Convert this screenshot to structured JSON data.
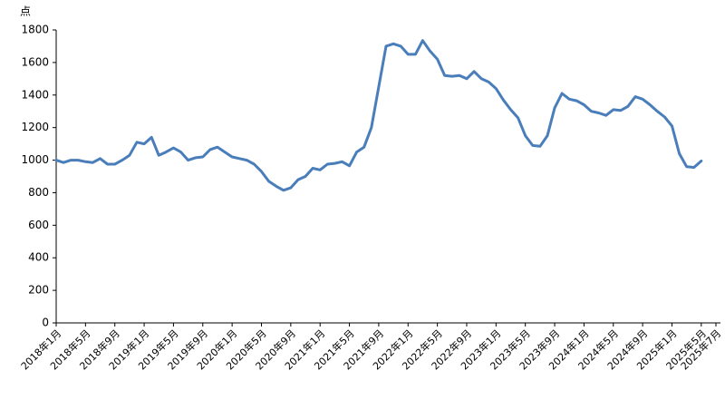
{
  "chart_data": {
    "type": "line",
    "y_label": "点",
    "categories": [
      "2018年1月",
      null,
      null,
      null,
      "2018年5月",
      null,
      null,
      null,
      "2018年9月",
      null,
      null,
      null,
      "2019年1月",
      null,
      null,
      null,
      "2019年5月",
      null,
      null,
      null,
      "2019年9月",
      null,
      null,
      null,
      "2020年1月",
      null,
      null,
      null,
      "2020年5月",
      null,
      null,
      null,
      "2020年9月",
      null,
      null,
      null,
      "2021年1月",
      null,
      null,
      null,
      "2021年5月",
      null,
      null,
      null,
      "2021年9月",
      null,
      null,
      null,
      "2022年1月",
      null,
      null,
      null,
      "2022年5月",
      null,
      null,
      null,
      "2022年9月",
      null,
      null,
      null,
      "2023年1月",
      null,
      null,
      null,
      "2023年5月",
      null,
      null,
      null,
      "2023年9月",
      null,
      null,
      null,
      "2024年1月",
      null,
      null,
      null,
      "2024年5月",
      null,
      null,
      null,
      "2024年9月",
      null,
      null,
      null,
      "2025年1月",
      null,
      null,
      null,
      "2025年5月",
      null,
      "2025年7月"
    ],
    "series": [
      {
        "color": "#4a7ebb",
        "values": [
          1000,
          985,
          1000,
          1000,
          990,
          985,
          1010,
          975,
          975,
          1000,
          1030,
          1110,
          1100,
          1140,
          1030,
          1050,
          1075,
          1050,
          1000,
          1015,
          1020,
          1065,
          1080,
          1050,
          1020,
          1010,
          1000,
          975,
          930,
          870,
          840,
          815,
          830,
          880,
          900,
          950,
          940,
          975,
          980,
          990,
          965,
          1050,
          1080,
          1200,
          1450,
          1700,
          1715,
          1700,
          1650,
          1650,
          1735,
          1670,
          1620,
          1520,
          1515,
          1520,
          1500,
          1545,
          1500,
          1480,
          1440,
          1370,
          1310,
          1260,
          1150,
          1090,
          1085,
          1150,
          1320,
          1410,
          1375,
          1365,
          1340,
          1300,
          1290,
          1275,
          1310,
          1305,
          1330,
          1390,
          1375,
          1340,
          1300,
          1265,
          1210,
          1040,
          960,
          955,
          995,
          null,
          null
        ]
      }
    ],
    "ylim": [
      0,
      1800
    ],
    "yticks": [
      0,
      200,
      400,
      600,
      800,
      1000,
      1200,
      1400,
      1600,
      1800
    ],
    "grid": false
  }
}
